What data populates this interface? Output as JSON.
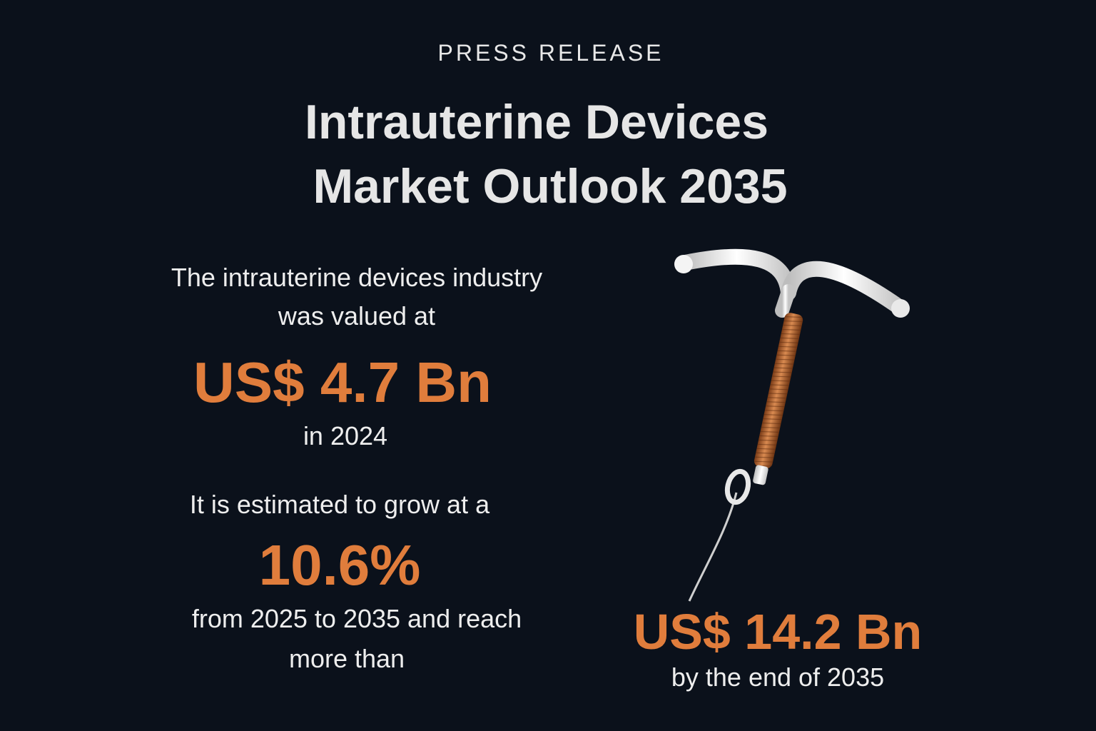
{
  "header": {
    "eyebrow": "PRESS RELEASE",
    "title_line1": "Intrauterine Devices",
    "title_line2": "Market Outlook 2035"
  },
  "stats": {
    "intro_line1": "The intrauterine devices industry",
    "intro_line2": "was valued at",
    "value_2024": "US$ 4.7 Bn",
    "year_text": "in 2024",
    "growth_intro": "It is estimated to grow at a",
    "cagr": "10.6%",
    "growth_line1": "from 2025 to 2035 and reach",
    "growth_line2": "more than",
    "value_2035": "US$ 14.2 Bn",
    "value_2035_sub": "by the end of 2035"
  },
  "colors": {
    "background": "#0b111b",
    "accent": "#e07d3c",
    "text": "#eeeeee"
  }
}
